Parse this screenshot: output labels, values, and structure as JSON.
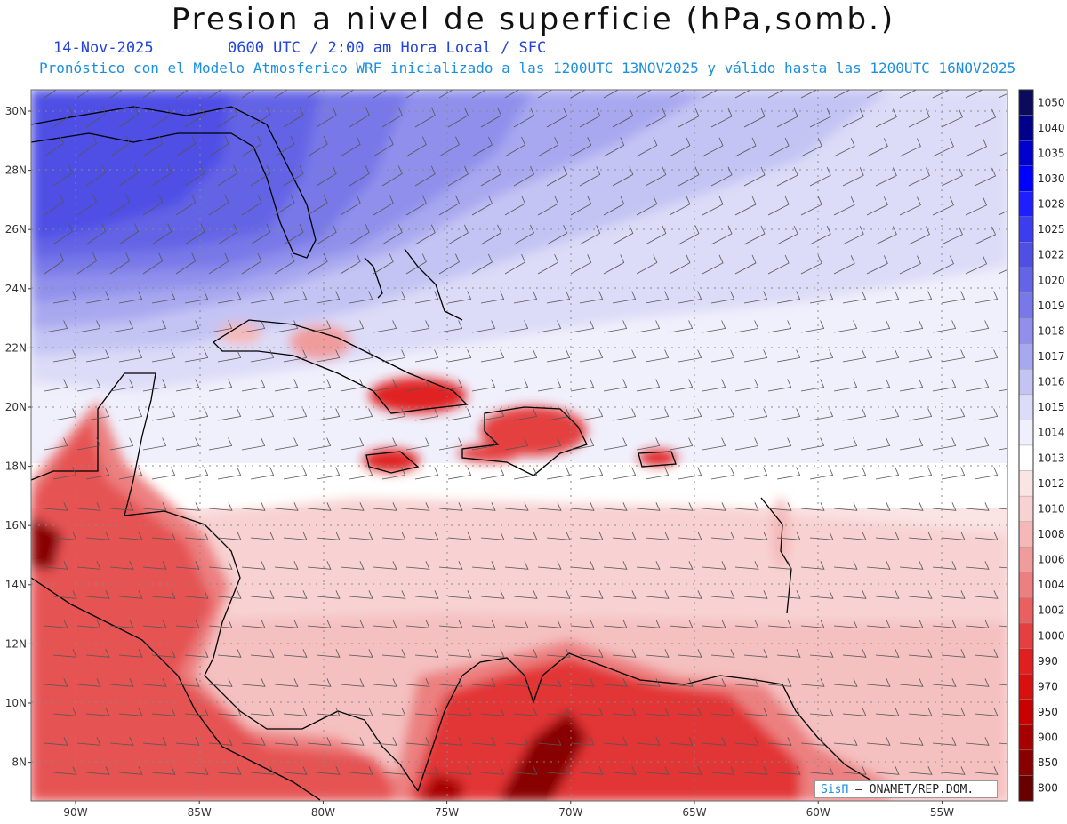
{
  "header": {
    "title": "Presion a nivel de superficie (hPa,somb.)",
    "date": "14-Nov-2025",
    "valid_time": "0600 UTC / 2:00 am Hora Local / SFC",
    "description": "Pronóstico con el Modelo Atmosferico WRF inicializado a las 1200UTC_13NOV2025 y válido hasta las  1200UTC_16NOV2025"
  },
  "axes": {
    "lat_labels": [
      "30N",
      "28N",
      "26N",
      "24N",
      "22N",
      "20N",
      "18N",
      "16N",
      "14N",
      "12N",
      "10N",
      "8N"
    ],
    "lon_labels": [
      "90W",
      "85W",
      "80W",
      "75W",
      "70W",
      "65W",
      "60W",
      "55W"
    ]
  },
  "colorbar": {
    "levels": [
      "1050",
      "1040",
      "1035",
      "1030",
      "1028",
      "1025",
      "1022",
      "1020",
      "1019",
      "1018",
      "1017",
      "1016",
      "1015",
      "1014",
      "1013",
      "1012",
      "1010",
      "1008",
      "1006",
      "1004",
      "1002",
      "1000",
      "990",
      "970",
      "950",
      "900",
      "850",
      "800"
    ],
    "colors": [
      "#0b0b5e",
      "#00008b",
      "#0000cd",
      "#0000ff",
      "#1e1eff",
      "#3d3df0",
      "#4f4fe6",
      "#6464e6",
      "#7878e8",
      "#9090ec",
      "#a8a8f0",
      "#c4c4f4",
      "#dcdcf8",
      "#f0f0fc",
      "#ffffff",
      "#fbe4e4",
      "#f8d2d2",
      "#f4b8b8",
      "#f09c9c",
      "#ec8080",
      "#e86060",
      "#e44040",
      "#e02020",
      "#d81010",
      "#c80000",
      "#a80000",
      "#880000",
      "#680000"
    ]
  },
  "credit": {
    "brand": "SisΠ",
    "org": "– ONAMET/REP.DOM."
  }
}
